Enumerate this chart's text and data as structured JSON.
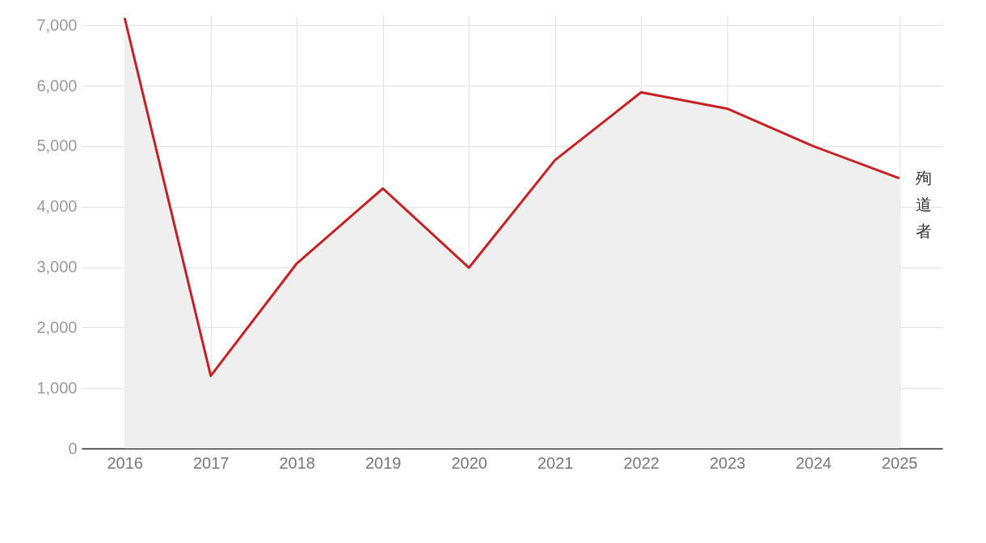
{
  "chart_data": {
    "type": "area",
    "categories": [
      "2016",
      "2017",
      "2018",
      "2019",
      "2020",
      "2021",
      "2022",
      "2023",
      "2024",
      "2025"
    ],
    "series": [
      {
        "name": "殉道者",
        "color": "#c62025",
        "values": [
          7120,
          1200,
          3060,
          4300,
          2990,
          4770,
          5890,
          5620,
          5000,
          4470
        ]
      }
    ],
    "ylim": [
      0,
      7150
    ],
    "yticks": [
      0,
      {
        "value": 1000,
        "label": "1,000"
      },
      {
        "value": 2000,
        "label": "2,000"
      },
      {
        "value": 3000,
        "label": "3,000"
      },
      {
        "value": 4000,
        "label": "4,000"
      },
      {
        "value": 5000,
        "label": "5,000"
      },
      {
        "value": 6000,
        "label": "6,000"
      },
      {
        "value": 7000,
        "label": "7,000"
      }
    ],
    "grid": true,
    "legend": false
  }
}
